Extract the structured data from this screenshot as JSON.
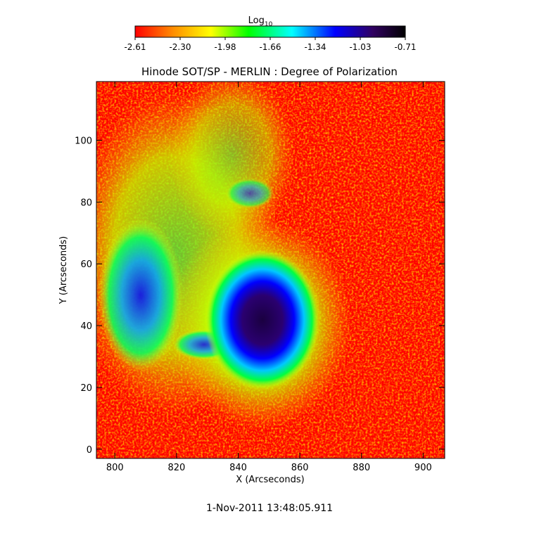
{
  "colorbar": {
    "label_main": "Log",
    "label_sub": "10",
    "ticks": [
      "-2.61",
      "-2.30",
      "-1.98",
      "-1.66",
      "-1.34",
      "-1.03",
      "-0.71"
    ],
    "range": [
      -2.61,
      -0.71
    ],
    "colors": [
      "#ff0000",
      "#ff8c00",
      "#ffff00",
      "#00ff00",
      "#00ffff",
      "#0000ff",
      "#300060",
      "#000000"
    ]
  },
  "chart_data": {
    "type": "heatmap",
    "title": "Hinode SOT/SP - MERLIN : Degree of Polarization",
    "xlabel": "X (Arcseconds)",
    "ylabel": "Y (Arcseconds)",
    "xlim": [
      794,
      907
    ],
    "ylim": [
      -3,
      119
    ],
    "xticks": [
      800,
      820,
      840,
      860,
      880,
      900
    ],
    "yticks": [
      0,
      20,
      40,
      60,
      80,
      100
    ],
    "colorscale": "log10",
    "value_range": [
      -2.61,
      -0.71
    ],
    "features": [
      {
        "kind": "sunspot-umbra",
        "x": 849,
        "y": 42,
        "log_value": -0.8
      },
      {
        "kind": "sunspot-penumbra",
        "x": 848,
        "y": 42,
        "log_value": -1.2
      },
      {
        "kind": "plage",
        "x": 810,
        "y": 50,
        "log_value": -1.3
      }
    ],
    "background_log_value": -2.5
  },
  "footer": {
    "timestamp": "1-Nov-2011 13:48:05.911"
  }
}
